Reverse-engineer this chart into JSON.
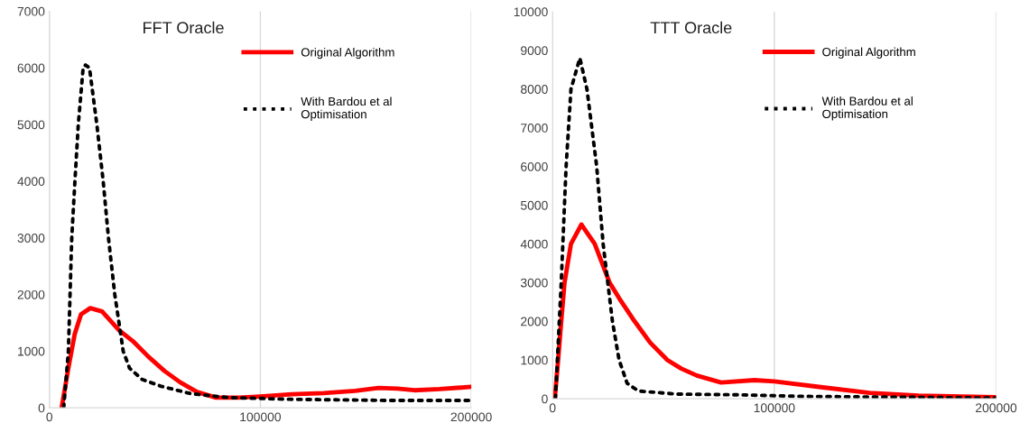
{
  "chart_data": [
    {
      "type": "line",
      "title": "FFT Oracle",
      "xlim": [
        0,
        200000
      ],
      "xticks": [
        0,
        100000,
        200000
      ],
      "ylim": [
        0,
        7000
      ],
      "yticks": [
        0,
        1000,
        2000,
        3000,
        4000,
        5000,
        6000,
        7000
      ],
      "grid": "x",
      "legend": "top right",
      "series": [
        {
          "name": "Original Algorithm",
          "color": "#ff0000",
          "line_style": "solid",
          "x": [
            5800,
            9000,
            12000,
            15000,
            19400,
            25000,
            33000,
            39500,
            47000,
            54600,
            62000,
            70000,
            79000,
            90000,
            100000,
            115000,
            130000,
            145000,
            156000,
            165000,
            173000,
            185000,
            200000
          ],
          "values": [
            0,
            700,
            1300,
            1650,
            1760,
            1700,
            1370,
            1180,
            900,
            650,
            450,
            280,
            180,
            180,
            200,
            240,
            260,
            300,
            350,
            340,
            310,
            330,
            370
          ]
        },
        {
          "name": "With Bardou et al\nOptimisation",
          "color": "#000000",
          "line_style": "dotted",
          "x": [
            6800,
            9000,
            10600,
            12100,
            13700,
            16000,
            17100,
            19000,
            22500,
            25500,
            28000,
            31000,
            35000,
            38000,
            44000,
            53000,
            67000,
            85000,
            115000,
            161000,
            200000
          ],
          "values": [
            0,
            1000,
            3000,
            4000,
            5000,
            6000,
            6050,
            6000,
            5000,
            4000,
            3000,
            2000,
            1000,
            700,
            500,
            380,
            250,
            180,
            150,
            130,
            130
          ]
        }
      ]
    },
    {
      "type": "line",
      "title": "TTT Oracle",
      "xlim": [
        0,
        200000
      ],
      "xticks": [
        0,
        100000,
        200000
      ],
      "ylim": [
        0,
        10000
      ],
      "yticks": [
        0,
        1000,
        2000,
        3000,
        4000,
        5000,
        6000,
        7000,
        8000,
        9000,
        10000
      ],
      "grid": "x",
      "legend": "top right",
      "series": [
        {
          "name": "Original Algorithm",
          "color": "#ff0000",
          "line_style": "solid",
          "x": [
            1000,
            2500,
            3900,
            5400,
            8300,
            13000,
            19000,
            25700,
            30000,
            37000,
            44000,
            51800,
            58000,
            65000,
            76000,
            91000,
            100000,
            121000,
            143000,
            165000,
            200000
          ],
          "values": [
            0,
            1000,
            2000,
            3000,
            4000,
            4500,
            4000,
            3000,
            2600,
            2000,
            1450,
            1000,
            780,
            600,
            420,
            480,
            450,
            300,
            150,
            80,
            40
          ]
        },
        {
          "name": "With Bardou et al\nOptimisation",
          "color": "#000000",
          "line_style": "dotted",
          "x": [
            1300,
            3900,
            6100,
            8300,
            12300,
            15500,
            19900,
            22800,
            27000,
            30000,
            33600,
            38700,
            56000,
            85000,
            114000,
            200000
          ],
          "values": [
            0,
            3000,
            6000,
            8000,
            8800,
            8000,
            6000,
            4000,
            2000,
            1000,
            400,
            200,
            120,
            100,
            60,
            20
          ]
        }
      ]
    }
  ]
}
